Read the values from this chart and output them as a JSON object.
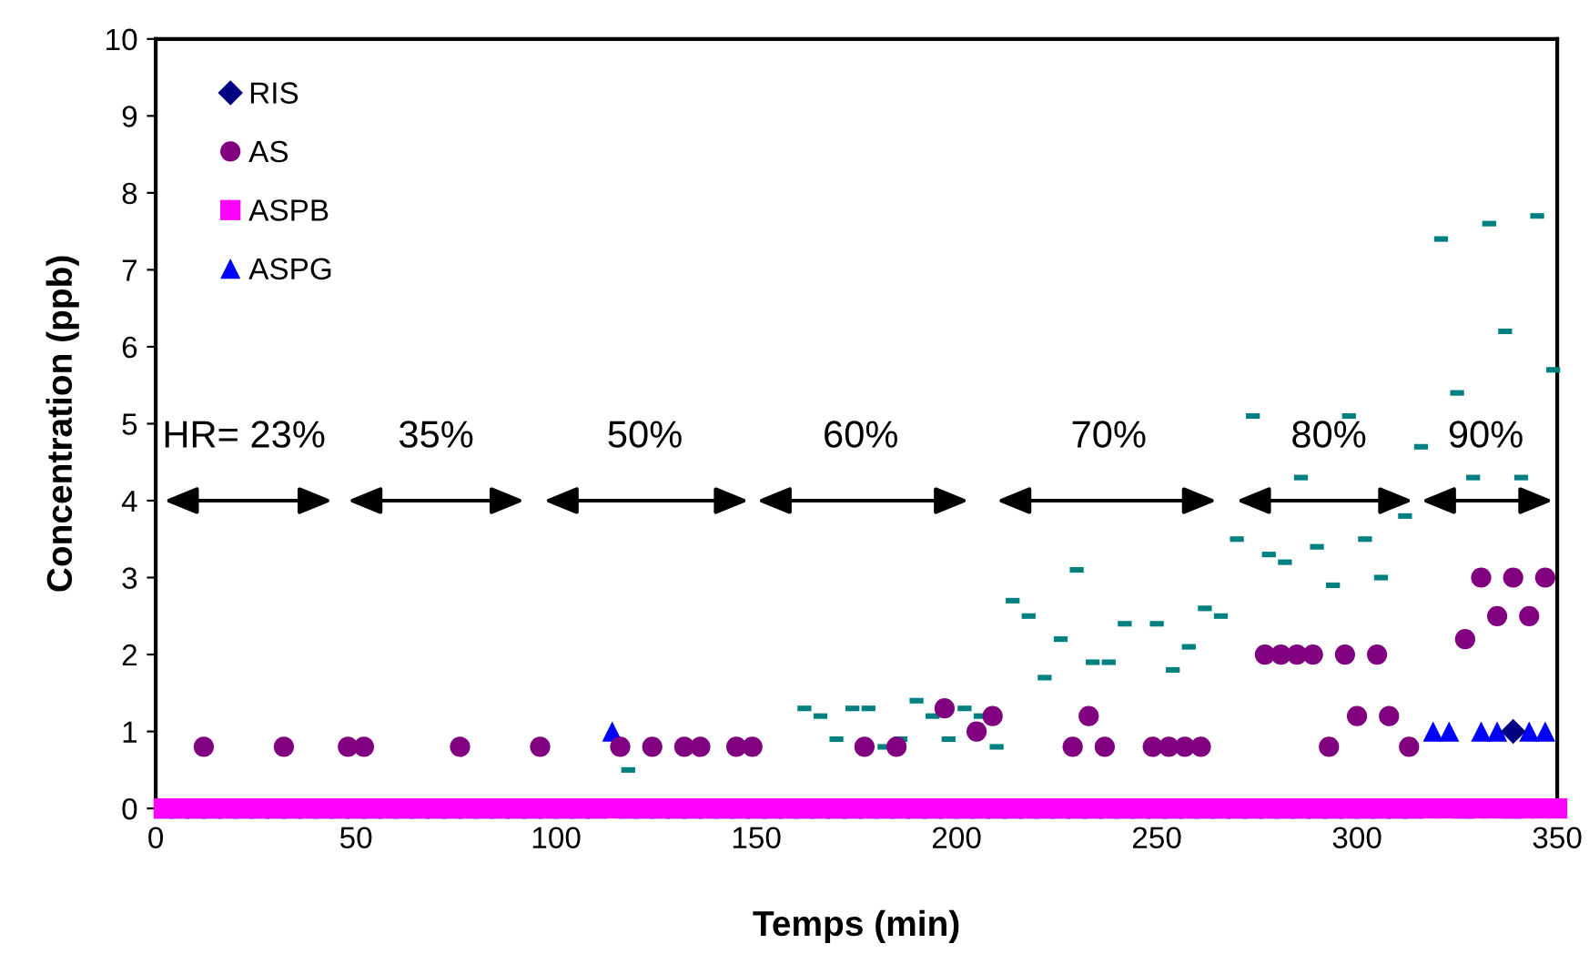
{
  "chart_data": {
    "type": "scatter",
    "xlabel": "Temps (min)",
    "ylabel": "Concentration (ppb)",
    "xlim": [
      0,
      350
    ],
    "xticks": [
      0,
      50,
      100,
      150,
      200,
      250,
      300,
      350
    ],
    "ylim": [
      0,
      10
    ],
    "yticks": [
      0,
      1,
      2,
      3,
      4,
      5,
      6,
      7,
      8,
      9,
      10
    ],
    "grid": false,
    "legend": "top left",
    "series": [
      {
        "name": "RIS",
        "color": "#000080",
        "marker": "diamond",
        "x": [
          339
        ],
        "values": [
          1
        ]
      },
      {
        "name": "AS",
        "color": "#800080",
        "marker": "circle",
        "x": [
          12,
          32,
          48,
          52,
          76,
          96,
          116,
          124,
          132,
          136,
          145,
          149,
          177,
          185,
          197,
          205,
          209,
          229,
          233,
          237,
          249,
          253,
          257,
          261,
          277,
          281,
          285,
          289,
          293,
          297,
          300,
          305,
          308,
          313,
          327,
          331,
          335,
          339,
          343,
          347
        ],
        "values": [
          0.8,
          0.8,
          0.8,
          0.8,
          0.8,
          0.8,
          0.8,
          0.8,
          0.8,
          0.8,
          0.8,
          0.8,
          0.8,
          0.8,
          1.3,
          1.0,
          1.2,
          0.8,
          1.2,
          0.8,
          0.8,
          0.8,
          0.8,
          0.8,
          2,
          2,
          2,
          2,
          0.8,
          2,
          1.2,
          2,
          1.2,
          0.8,
          2.2,
          3,
          2.5,
          3,
          2.5,
          3
        ]
      },
      {
        "color": "#008080",
        "marker": "square",
        "x": [
          118,
          162,
          166,
          170,
          174,
          178,
          182,
          186,
          190,
          194,
          198,
          202,
          206,
          210,
          214,
          218,
          222,
          226,
          230,
          234,
          238,
          242,
          250,
          254,
          258,
          262,
          266,
          270,
          274,
          278,
          282,
          286,
          290,
          294,
          298,
          302,
          306,
          312,
          316,
          321,
          325,
          329,
          333,
          337,
          341,
          345,
          349
        ],
        "values": [
          0.5,
          1.3,
          1.2,
          0.9,
          1.3,
          1.3,
          0.8,
          0.9,
          1.4,
          1.2,
          0.9,
          1.3,
          1.2,
          0.8,
          2.7,
          2.5,
          1.7,
          2.2,
          3.1,
          1.9,
          1.9,
          2.4,
          2.4,
          1.8,
          2.1,
          2.6,
          2.5,
          3.5,
          5.1,
          3.3,
          3.2,
          4.3,
          3.4,
          2.9,
          5.1,
          3.5,
          3.0,
          3.8,
          4.7,
          7.4,
          5.4,
          4.3,
          7.6,
          6.2,
          4.3,
          7.7,
          5.7
        ]
      },
      {
        "name": "ASPB",
        "color": "#ff00ff",
        "marker": "square",
        "x": [
          2,
          6,
          10,
          14,
          18,
          22,
          26,
          30,
          34,
          38,
          42,
          46,
          50,
          54,
          58,
          62,
          66,
          70,
          74,
          78,
          82,
          86,
          90,
          94,
          98,
          102,
          106,
          110,
          114,
          118,
          122,
          126,
          130,
          134,
          138,
          142,
          146,
          150,
          154,
          158,
          162,
          166,
          170,
          174,
          178,
          182,
          186,
          190,
          194,
          198,
          202,
          206,
          210,
          214,
          218,
          222,
          226,
          230,
          234,
          238,
          242,
          246,
          250,
          254,
          258,
          262,
          266,
          270,
          274,
          278,
          282,
          286,
          290,
          294,
          298,
          302,
          306,
          310,
          314,
          318,
          322,
          326,
          330,
          334,
          338,
          342,
          346,
          350
        ],
        "values": [
          0,
          0,
          0,
          0,
          0,
          0,
          0,
          0,
          0,
          0,
          0,
          0,
          0,
          0,
          0,
          0,
          0,
          0,
          0,
          0,
          0,
          0,
          0,
          0,
          0,
          0,
          0,
          0,
          0,
          0,
          0,
          0,
          0,
          0,
          0,
          0,
          0,
          0,
          0,
          0,
          0,
          0,
          0,
          0,
          0,
          0,
          0,
          0,
          0,
          0,
          0,
          0,
          0,
          0,
          0,
          0,
          0,
          0,
          0,
          0,
          0,
          0,
          0,
          0,
          0,
          0,
          0,
          0,
          0,
          0,
          0,
          0,
          0,
          0,
          0,
          0,
          0,
          0,
          0,
          0,
          0,
          0,
          0,
          0,
          0,
          0,
          0,
          0
        ]
      },
      {
        "name": "ASPG",
        "color": "#0000ff",
        "marker": "triangle",
        "x": [
          2,
          6,
          10,
          14,
          18,
          22,
          26,
          30,
          34,
          38,
          42,
          46,
          50,
          54,
          58,
          62,
          66,
          70,
          74,
          78,
          82,
          86,
          90,
          94,
          98,
          102,
          106,
          110,
          114,
          118,
          122,
          126,
          130,
          134,
          138,
          142,
          146,
          150,
          154,
          158,
          162,
          166,
          170,
          174,
          178,
          182,
          186,
          190,
          194,
          198,
          202,
          206,
          210,
          214,
          218,
          222,
          226,
          230,
          234,
          238,
          242,
          246,
          250,
          254,
          258,
          262,
          266,
          270,
          274,
          278,
          282,
          286,
          290,
          294,
          298,
          302,
          306,
          310,
          314,
          319,
          323,
          327,
          331,
          335,
          339,
          343,
          347
        ],
        "values": [
          0,
          0,
          0,
          0,
          0,
          0,
          0,
          0,
          0,
          0,
          0,
          0,
          0,
          0,
          0,
          0,
          0,
          0,
          0,
          0,
          0,
          0,
          0,
          0,
          0,
          0,
          0,
          0,
          1,
          0,
          0,
          0,
          0,
          0,
          0,
          0,
          0,
          0,
          0,
          0,
          0,
          0,
          0,
          0,
          0,
          0,
          0,
          0,
          0,
          0,
          0,
          0,
          0,
          0,
          0,
          0,
          0,
          0,
          0,
          0,
          0,
          0,
          0,
          0,
          0,
          0,
          0,
          0,
          0,
          0,
          0,
          0,
          0,
          0,
          0,
          0,
          0,
          0,
          0,
          1,
          1,
          0,
          1,
          1,
          0,
          1,
          1
        ]
      }
    ],
    "annotations": [
      "HR= 23%",
      "35%",
      "50%",
      "60%",
      "70%",
      "80%",
      "90%"
    ]
  }
}
